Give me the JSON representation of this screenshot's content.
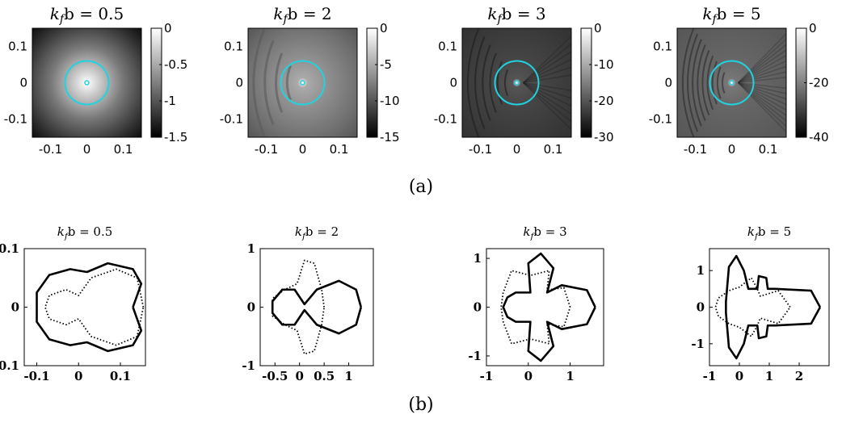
{
  "caption_a": "(a)",
  "caption_b": "(b)",
  "chart_data": [
    {
      "type": "heatmap",
      "title": "k_f b = 0.5",
      "title_lhs": "k",
      "title_sub": "f",
      "title_rhs": "b = 0.5",
      "x_ticks": [
        "-0.1",
        "0",
        "0.1"
      ],
      "y_ticks": [
        "0.1",
        "0",
        "-0.1"
      ],
      "xlim": [
        -0.15,
        0.15
      ],
      "ylim": [
        -0.15,
        0.15
      ],
      "colorbar": {
        "ticks": [
          "0",
          "-0.5",
          "-1",
          "-1.5"
        ],
        "vmin": -1.5,
        "vmax": 0
      },
      "circle_radius": 0.06,
      "pattern": 0
    },
    {
      "type": "heatmap",
      "title": "k_f b = 2",
      "title_lhs": "k",
      "title_sub": "f",
      "title_rhs": "b = 2",
      "x_ticks": [
        "-0.1",
        "0",
        "0.1"
      ],
      "y_ticks": [
        "0.1",
        "0",
        "-0.1"
      ],
      "xlim": [
        -0.15,
        0.15
      ],
      "ylim": [
        -0.15,
        0.15
      ],
      "colorbar": {
        "ticks": [
          "0",
          "-5",
          "-10",
          "-15"
        ],
        "vmin": -15,
        "vmax": 0
      },
      "circle_radius": 0.06,
      "pattern": 1
    },
    {
      "type": "heatmap",
      "title": "k_f b = 3",
      "title_lhs": "k",
      "title_sub": "f",
      "title_rhs": "b = 3",
      "x_ticks": [
        "-0.1",
        "0",
        "0.1"
      ],
      "y_ticks": [
        "0.1",
        "0",
        "-0.1"
      ],
      "xlim": [
        -0.15,
        0.15
      ],
      "ylim": [
        -0.15,
        0.15
      ],
      "colorbar": {
        "ticks": [
          "0",
          "-10",
          "-20",
          "-30"
        ],
        "vmin": -30,
        "vmax": 0
      },
      "circle_radius": 0.06,
      "pattern": 2
    },
    {
      "type": "heatmap",
      "title": "k_f b = 5",
      "title_lhs": "k",
      "title_sub": "f",
      "title_rhs": "b = 5",
      "x_ticks": [
        "-0.1",
        "0",
        "0.1"
      ],
      "y_ticks": [
        "0.1",
        "0",
        "-0.1"
      ],
      "xlim": [
        -0.15,
        0.15
      ],
      "ylim": [
        -0.15,
        0.15
      ],
      "colorbar": {
        "ticks": [
          "0",
          "-20",
          "-40"
        ],
        "vmin": -40,
        "vmax": 0
      },
      "circle_radius": 0.06,
      "pattern": 3
    },
    {
      "type": "line",
      "title": "k_f b = 0.5",
      "title_lhs": "k",
      "title_sub": "f",
      "title_rhs": "b = 0.5",
      "xlim": [
        -0.13,
        0.16
      ],
      "ylim": [
        -0.1,
        0.1
      ],
      "x_ticks": [
        {
          "v": -0.1,
          "t": "-0.1"
        },
        {
          "v": 0,
          "t": "0"
        },
        {
          "v": 0.1,
          "t": "0.1"
        }
      ],
      "y_ticks": [
        {
          "v": 0.1,
          "t": "0.1"
        },
        {
          "v": 0,
          "t": "0"
        },
        {
          "v": -0.1,
          "t": "-0.1"
        }
      ],
      "series": [
        {
          "style": "solid",
          "points": [
            [
              0.13,
              0
            ],
            [
              0.15,
              0.04
            ],
            [
              0.13,
              0.065
            ],
            [
              0.07,
              0.075
            ],
            [
              0.02,
              0.06
            ],
            [
              -0.02,
              0.065
            ],
            [
              -0.07,
              0.055
            ],
            [
              -0.1,
              0.025
            ],
            [
              -0.1,
              -0.025
            ],
            [
              -0.07,
              -0.055
            ],
            [
              -0.02,
              -0.065
            ],
            [
              0.02,
              -0.06
            ],
            [
              0.07,
              -0.075
            ],
            [
              0.13,
              -0.065
            ],
            [
              0.15,
              -0.04
            ],
            [
              0.13,
              0
            ]
          ]
        },
        {
          "style": "dotted",
          "points": [
            [
              0.155,
              0
            ],
            [
              0.14,
              0.05
            ],
            [
              0.09,
              0.065
            ],
            [
              0.03,
              0.05
            ],
            [
              0.0,
              0.02
            ],
            [
              -0.03,
              0.03
            ],
            [
              -0.07,
              0.02
            ],
            [
              -0.08,
              0
            ],
            [
              -0.07,
              -0.02
            ],
            [
              -0.03,
              -0.03
            ],
            [
              0.0,
              -0.02
            ],
            [
              0.03,
              -0.05
            ],
            [
              0.09,
              -0.065
            ],
            [
              0.14,
              -0.05
            ],
            [
              0.155,
              0
            ]
          ]
        }
      ]
    },
    {
      "type": "line",
      "title": "k_f b = 2",
      "title_lhs": "k",
      "title_sub": "f",
      "title_rhs": "b = 2",
      "xlim": [
        -0.8,
        1.5
      ],
      "ylim": [
        -1,
        1
      ],
      "x_ticks": [
        {
          "v": -0.5,
          "t": "-0.5"
        },
        {
          "v": 0,
          "t": "0"
        },
        {
          "v": 0.5,
          "t": "0.5"
        },
        {
          "v": 1,
          "t": "1"
        }
      ],
      "y_ticks": [
        {
          "v": 1,
          "t": "1"
        },
        {
          "v": 0,
          "t": "0"
        },
        {
          "v": -1,
          "t": "-1"
        }
      ],
      "series": [
        {
          "style": "solid",
          "points": [
            [
              1.25,
              0
            ],
            [
              1.15,
              0.3
            ],
            [
              0.8,
              0.45
            ],
            [
              0.35,
              0.3
            ],
            [
              0.1,
              0.05
            ],
            [
              -0.1,
              0.3
            ],
            [
              -0.35,
              0.3
            ],
            [
              -0.55,
              0.1
            ],
            [
              -0.55,
              -0.1
            ],
            [
              -0.35,
              -0.3
            ],
            [
              -0.1,
              -0.3
            ],
            [
              0.1,
              -0.05
            ],
            [
              0.35,
              -0.3
            ],
            [
              0.8,
              -0.45
            ],
            [
              1.15,
              -0.3
            ],
            [
              1.25,
              0
            ]
          ]
        },
        {
          "style": "dotted",
          "points": [
            [
              0.5,
              0
            ],
            [
              0.45,
              0.3
            ],
            [
              0.3,
              0.75
            ],
            [
              0.1,
              0.8
            ],
            [
              -0.05,
              0.4
            ],
            [
              -0.3,
              0.3
            ],
            [
              -0.55,
              0.15
            ],
            [
              -0.55,
              -0.15
            ],
            [
              -0.3,
              -0.3
            ],
            [
              -0.05,
              -0.4
            ],
            [
              0.1,
              -0.8
            ],
            [
              0.3,
              -0.75
            ],
            [
              0.45,
              -0.3
            ],
            [
              0.5,
              0
            ]
          ]
        }
      ]
    },
    {
      "type": "line",
      "title": "k_f b = 3",
      "title_lhs": "k",
      "title_sub": "f",
      "title_rhs": "b = 3",
      "xlim": [
        -1,
        1.8
      ],
      "ylim": [
        -1.2,
        1.2
      ],
      "x_ticks": [
        {
          "v": -1,
          "t": "-1"
        },
        {
          "v": 0,
          "t": "0"
        },
        {
          "v": 1,
          "t": "1"
        }
      ],
      "y_ticks": [
        {
          "v": 1,
          "t": "1"
        },
        {
          "v": 0,
          "t": "0"
        },
        {
          "v": -1,
          "t": "-1"
        }
      ],
      "series": [
        {
          "style": "solid",
          "points": [
            [
              1.6,
              0
            ],
            [
              1.4,
              0.35
            ],
            [
              0.8,
              0.45
            ],
            [
              0.45,
              0.3
            ],
            [
              0.6,
              0.8
            ],
            [
              0.3,
              1.1
            ],
            [
              0.0,
              0.9
            ],
            [
              0.05,
              0.3
            ],
            [
              -0.3,
              0.3
            ],
            [
              -0.5,
              0.2
            ],
            [
              -0.6,
              0
            ],
            [
              -0.5,
              -0.2
            ],
            [
              -0.3,
              -0.3
            ],
            [
              0.05,
              -0.3
            ],
            [
              0.0,
              -0.9
            ],
            [
              0.3,
              -1.1
            ],
            [
              0.6,
              -0.8
            ],
            [
              0.45,
              -0.3
            ],
            [
              0.8,
              -0.45
            ],
            [
              1.4,
              -0.35
            ],
            [
              1.6,
              0
            ]
          ]
        },
        {
          "style": "dotted",
          "points": [
            [
              1.0,
              0
            ],
            [
              0.85,
              0.4
            ],
            [
              0.45,
              0.35
            ],
            [
              0.5,
              0.75
            ],
            [
              0.05,
              0.65
            ],
            [
              -0.4,
              0.75
            ],
            [
              -0.6,
              0.3
            ],
            [
              -0.65,
              0
            ],
            [
              -0.6,
              -0.3
            ],
            [
              -0.4,
              -0.75
            ],
            [
              0.05,
              -0.65
            ],
            [
              0.5,
              -0.75
            ],
            [
              0.45,
              -0.35
            ],
            [
              0.85,
              -0.4
            ],
            [
              1.0,
              0
            ]
          ]
        }
      ]
    },
    {
      "type": "line",
      "title": "k_f b = 5",
      "title_lhs": "k",
      "title_sub": "f",
      "title_rhs": "b = 5",
      "xlim": [
        -1,
        3
      ],
      "ylim": [
        -1.6,
        1.6
      ],
      "x_ticks": [
        {
          "v": -1,
          "t": "-1"
        },
        {
          "v": 0,
          "t": "0"
        },
        {
          "v": 1,
          "t": "1"
        },
        {
          "v": 2,
          "t": "2"
        }
      ],
      "y_ticks": [
        {
          "v": 1,
          "t": "1"
        },
        {
          "v": 0,
          "t": "0"
        },
        {
          "v": -1,
          "t": "-1"
        }
      ],
      "series": [
        {
          "style": "solid",
          "points": [
            [
              2.7,
              0
            ],
            [
              2.4,
              0.45
            ],
            [
              1.2,
              0.5
            ],
            [
              0.95,
              0.5
            ],
            [
              0.9,
              0.8
            ],
            [
              0.65,
              0.85
            ],
            [
              0.6,
              0.5
            ],
            [
              0.3,
              0.5
            ],
            [
              0.15,
              1.0
            ],
            [
              -0.1,
              1.4
            ],
            [
              -0.35,
              1.1
            ],
            [
              -0.45,
              0.15
            ],
            [
              -0.45,
              -0.15
            ],
            [
              -0.35,
              -1.1
            ],
            [
              -0.1,
              -1.4
            ],
            [
              0.15,
              -1.0
            ],
            [
              0.3,
              -0.5
            ],
            [
              0.6,
              -0.5
            ],
            [
              0.65,
              -0.85
            ],
            [
              0.9,
              -0.8
            ],
            [
              0.95,
              -0.5
            ],
            [
              1.2,
              -0.5
            ],
            [
              2.4,
              -0.45
            ],
            [
              2.7,
              0
            ]
          ]
        },
        {
          "style": "dotted",
          "points": [
            [
              1.7,
              0
            ],
            [
              1.3,
              0.45
            ],
            [
              0.7,
              0.3
            ],
            [
              0.6,
              0.5
            ],
            [
              0.4,
              0.8
            ],
            [
              0.0,
              0.55
            ],
            [
              -0.35,
              0.45
            ],
            [
              -0.7,
              0.25
            ],
            [
              -0.8,
              0
            ],
            [
              -0.7,
              -0.25
            ],
            [
              -0.35,
              -0.45
            ],
            [
              0.0,
              -0.55
            ],
            [
              0.4,
              -0.8
            ],
            [
              0.6,
              -0.5
            ],
            [
              0.7,
              -0.3
            ],
            [
              1.3,
              -0.45
            ],
            [
              1.7,
              0
            ]
          ]
        }
      ]
    }
  ]
}
